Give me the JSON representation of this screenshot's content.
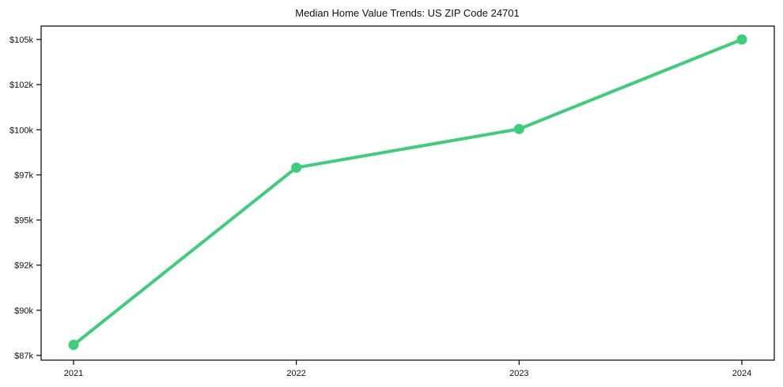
{
  "chart_data": {
    "type": "line",
    "title": "Median Home Value Trends: US ZIP Code 24701",
    "x": [
      "2021",
      "2022",
      "2023",
      "2024"
    ],
    "series": [
      {
        "name": "median-home-value",
        "values": [
          87600,
          97700,
          99900,
          105000
        ]
      }
    ],
    "xlabel": "",
    "ylabel": "",
    "ylim": [
      87000,
      105000
    ],
    "y_tick_labels_top_to_bottom": [
      "$105k",
      "$102k",
      "$100k",
      "$97k",
      "$95k",
      "$92k",
      "$90k",
      "$87k"
    ],
    "x_tick_labels": [
      "2021",
      "2022",
      "2023",
      "2024"
    ],
    "grid": false,
    "legend_position": "none",
    "line_color": "#3ccd7d",
    "marker": "circle",
    "background_color": "#ffffff",
    "axis_color": "#000000"
  }
}
